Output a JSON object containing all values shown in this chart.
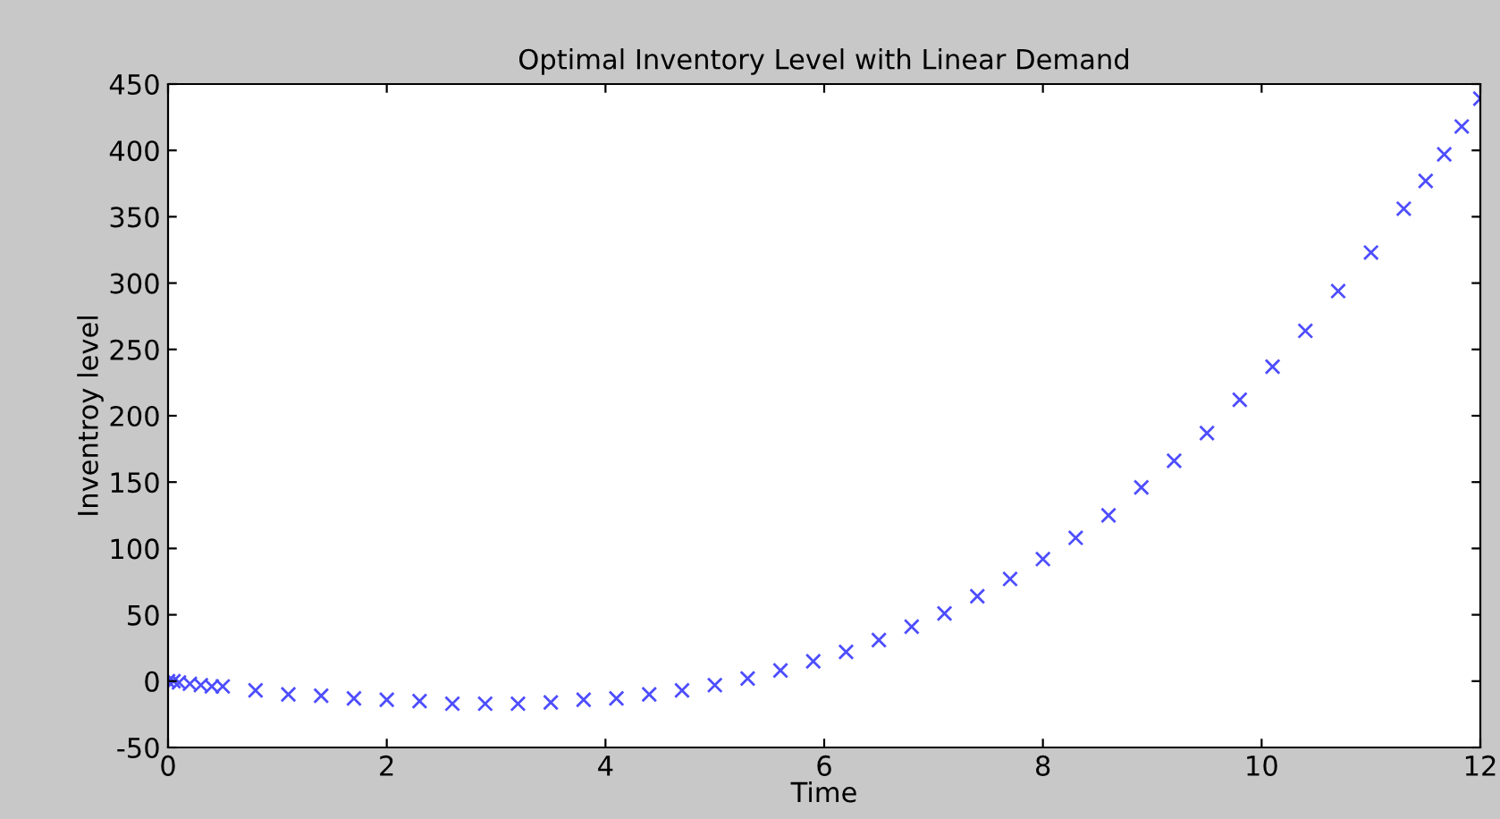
{
  "chart_data": {
    "type": "scatter",
    "title": "Optimal Inventory Level with Linear Demand",
    "xlabel": "Time",
    "ylabel": "Inventroy level",
    "x": [
      0,
      0.05,
      0.1,
      0.2,
      0.3,
      0.4,
      0.5,
      0.8,
      1.1,
      1.4,
      1.7,
      2.0,
      2.3,
      2.6,
      2.9,
      3.2,
      3.5,
      3.8,
      4.1,
      4.4,
      4.7,
      5.0,
      5.3,
      5.6,
      5.9,
      6.2,
      6.5,
      6.8,
      7.1,
      7.4,
      7.7,
      8.0,
      8.3,
      8.6,
      8.9,
      9.2,
      9.5,
      9.8,
      10.1,
      10.4,
      10.7,
      11.0,
      11.3,
      11.5,
      11.67,
      11.83,
      12.0
    ],
    "series": [
      {
        "color": "#4d4dff",
        "values": [
          0,
          0,
          -1,
          -2,
          -3,
          -4,
          -4,
          -7,
          -10,
          -11,
          -13,
          -14,
          -15,
          -17,
          -17,
          -17,
          -16,
          -14,
          -13,
          -10,
          -7,
          -3,
          2,
          8,
          15,
          22,
          31,
          41,
          51,
          64,
          77,
          92,
          108,
          125,
          146,
          166,
          187,
          212,
          237,
          264,
          294,
          323,
          356,
          377,
          397,
          418,
          439
        ]
      }
    ],
    "xlim": [
      0,
      12
    ],
    "ylim": [
      -50,
      450
    ],
    "xticks": [
      0,
      2,
      4,
      6,
      8,
      10,
      12
    ],
    "yticks": [
      -50,
      0,
      50,
      100,
      150,
      200,
      250,
      300,
      350,
      400,
      450
    ],
    "marker": "cross",
    "grid": false,
    "legend": false
  }
}
